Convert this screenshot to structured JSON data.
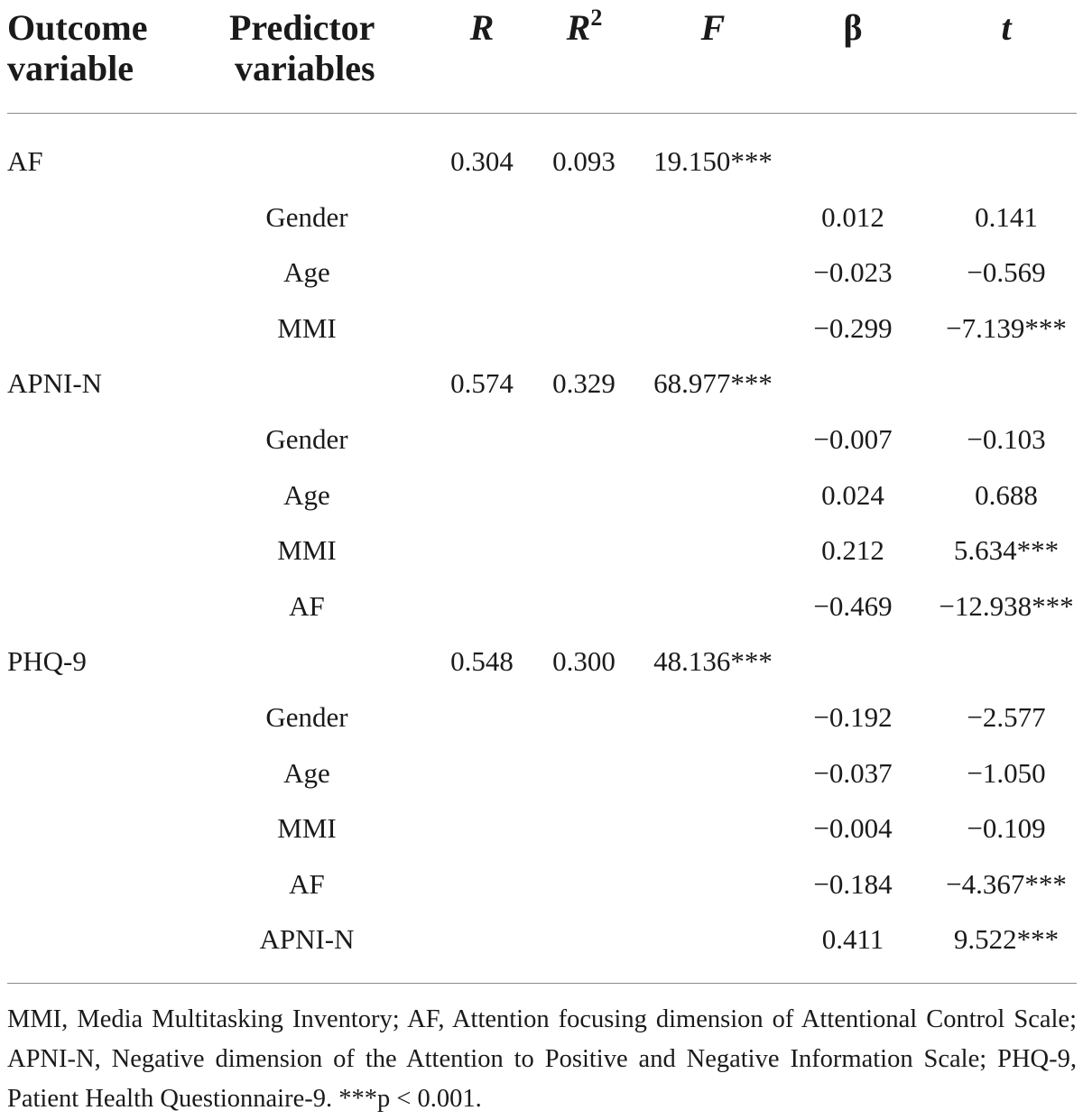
{
  "headers": {
    "outcome_line1": "Outcome",
    "outcome_line2": "variable",
    "predictor_line1": "Predictor",
    "predictor_line2": "variables",
    "r": "R",
    "r2_base": "R",
    "r2_sup": "2",
    "f": "F",
    "beta": "β",
    "t": "t"
  },
  "rows": [
    {
      "outcome": "AF",
      "predictor": "",
      "R": "0.304",
      "R2": "0.093",
      "F": "19.150***",
      "beta": "",
      "t": ""
    },
    {
      "outcome": "",
      "predictor": "Gender",
      "R": "",
      "R2": "",
      "F": "",
      "beta": "0.012",
      "t": "0.141"
    },
    {
      "outcome": "",
      "predictor": "Age",
      "R": "",
      "R2": "",
      "F": "",
      "beta": "−0.023",
      "t": "−0.569"
    },
    {
      "outcome": "",
      "predictor": "MMI",
      "R": "",
      "R2": "",
      "F": "",
      "beta": "−0.299",
      "t": "−7.139***"
    },
    {
      "outcome": "APNI-N",
      "predictor": "",
      "R": "0.574",
      "R2": "0.329",
      "F": "68.977***",
      "beta": "",
      "t": ""
    },
    {
      "outcome": "",
      "predictor": "Gender",
      "R": "",
      "R2": "",
      "F": "",
      "beta": "−0.007",
      "t": "−0.103"
    },
    {
      "outcome": "",
      "predictor": "Age",
      "R": "",
      "R2": "",
      "F": "",
      "beta": "0.024",
      "t": "0.688"
    },
    {
      "outcome": "",
      "predictor": "MMI",
      "R": "",
      "R2": "",
      "F": "",
      "beta": "0.212",
      "t": "5.634***"
    },
    {
      "outcome": "",
      "predictor": "AF",
      "R": "",
      "R2": "",
      "F": "",
      "beta": "−0.469",
      "t": "−12.938***"
    },
    {
      "outcome": "PHQ-9",
      "predictor": "",
      "R": "0.548",
      "R2": "0.300",
      "F": "48.136***",
      "beta": "",
      "t": ""
    },
    {
      "outcome": "",
      "predictor": "Gender",
      "R": "",
      "R2": "",
      "F": "",
      "beta": "−0.192",
      "t": "−2.577"
    },
    {
      "outcome": "",
      "predictor": "Age",
      "R": "",
      "R2": "",
      "F": "",
      "beta": "−0.037",
      "t": "−1.050"
    },
    {
      "outcome": "",
      "predictor": "MMI",
      "R": "",
      "R2": "",
      "F": "",
      "beta": "−0.004",
      "t": "−0.109"
    },
    {
      "outcome": "",
      "predictor": "AF",
      "R": "",
      "R2": "",
      "F": "",
      "beta": "−0.184",
      "t": "−4.367***"
    },
    {
      "outcome": "",
      "predictor": "APNI-N",
      "R": "",
      "R2": "",
      "F": "",
      "beta": "0.411",
      "t": "9.522***"
    }
  ],
  "footnote": "MMI, Media Multitasking Inventory; AF, Attention focusing dimension of Attentional Control Scale; APNI-N, Negative dimension of the Attention to Positive and Negative Information Scale; PHQ-9, Patient Health Questionnaire-9. ***p < 0.001."
}
